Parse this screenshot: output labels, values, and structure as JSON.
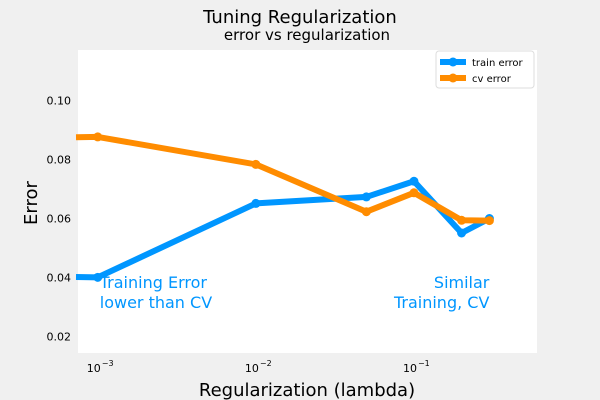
{
  "chart_data": {
    "type": "line",
    "title": "Tuning Regularization",
    "subtitle": "error vs regularization",
    "xlabel": "Regularization (lambda)",
    "ylabel": "Error",
    "x_scale": "log",
    "xlim": [
      0.00075,
      0.6
    ],
    "ylim": [
      0.0145,
      0.117
    ],
    "x_ticks": [
      {
        "value": 0.001,
        "base": "10",
        "exp": "−3"
      },
      {
        "value": 0.01,
        "base": "10",
        "exp": "−2"
      },
      {
        "value": 0.1,
        "base": "10",
        "exp": "−1"
      }
    ],
    "y_ticks": [
      {
        "value": 0.02,
        "label": "0.02"
      },
      {
        "value": 0.04,
        "label": "0.04"
      },
      {
        "value": 0.06,
        "label": "0.06"
      },
      {
        "value": 0.08,
        "label": "0.08"
      },
      {
        "value": 0.1,
        "label": "0.10"
      }
    ],
    "x": [
      0.0,
      0.001,
      0.01,
      0.05,
      0.1,
      0.2,
      0.3
    ],
    "series": [
      {
        "name": "train error",
        "color": "#0096ff",
        "values": [
          0.0402,
          0.0401,
          0.0651,
          0.0673,
          0.0726,
          0.0551,
          0.06
        ]
      },
      {
        "name": "cv error",
        "color": "#ff8c00",
        "values": [
          0.0875,
          0.0876,
          0.0783,
          0.0623,
          0.0687,
          0.0594,
          0.0593
        ]
      }
    ],
    "grid": false,
    "legend_position": "top-right",
    "annotations": [
      {
        "lines": [
          "Training Error",
          "lower than CV"
        ],
        "color": "#0096ff",
        "align": "left",
        "x": 0.001,
        "y": 0.0365
      },
      {
        "lines": [
          "Similar",
          "Training, CV"
        ],
        "color": "#0096ff",
        "align": "right",
        "x": 0.3,
        "y": 0.0365
      }
    ]
  }
}
